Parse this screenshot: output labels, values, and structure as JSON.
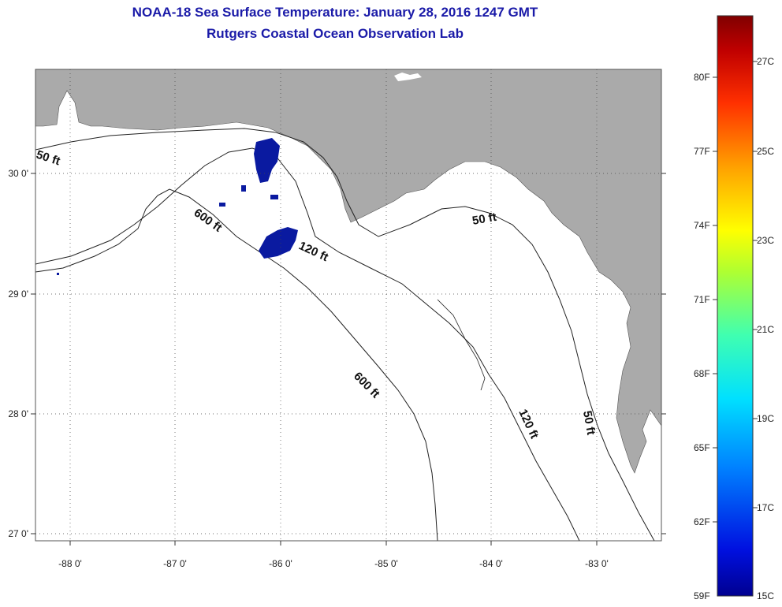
{
  "header": {
    "title": "NOAA-18 Sea Surface Temperature:  January 28, 2016 1247 GMT",
    "subtitle": "Rutgers Coastal Ocean Observation Lab"
  },
  "map": {
    "lon_ticks": [
      "-88 0'",
      "-87 0'",
      "-86 0'",
      "-85 0'",
      "-84 0'",
      "-83 0'"
    ],
    "lat_ticks": [
      "30 0'",
      "29 0'",
      "28 0'",
      "27 0'"
    ],
    "contours": {
      "c50_west": "50 ft",
      "c600_north": "600 ft",
      "c120_north": "120 ft",
      "c50_east": "50 ft",
      "c600_south": "600 ft",
      "c120_south": "120 ft",
      "c50_south": "50 ft"
    },
    "colors": {
      "land": "#aaaaaa",
      "water": "#ffffff",
      "sst_patch": "#0a1aa0"
    }
  },
  "colorbar": {
    "fahrenheit": [
      "80F",
      "77F",
      "74F",
      "71F",
      "68F",
      "65F",
      "62F",
      "59F"
    ],
    "celsius": [
      "27C",
      "25C",
      "23C",
      "21C",
      "19C",
      "17C",
      "15C"
    ],
    "colors": [
      "#0000a0",
      "#0030ff",
      "#00a0ff",
      "#00ffff",
      "#60ff90",
      "#d0ff20",
      "#ffd000",
      "#ff7000",
      "#ff1000",
      "#b00000",
      "#800000"
    ]
  }
}
